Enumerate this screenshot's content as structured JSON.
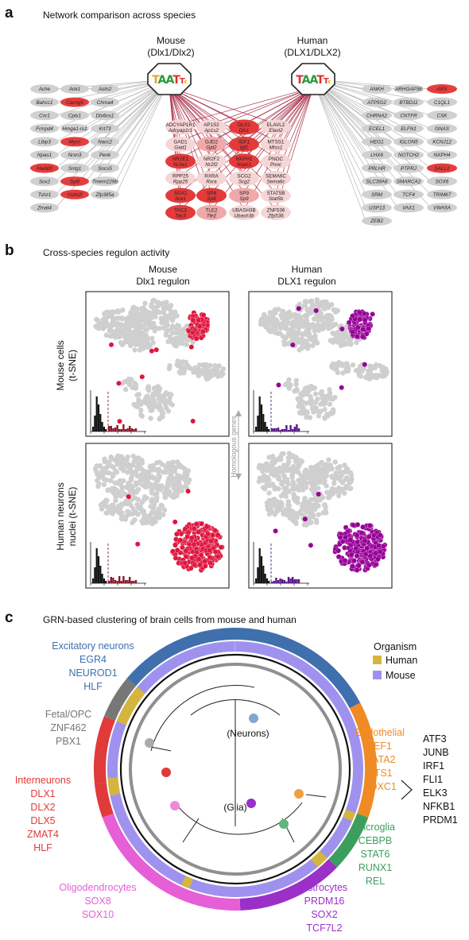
{
  "panel_a": {
    "letter": "a",
    "title": "Network comparison across species",
    "mouse_header": [
      "Mouse",
      "(Dlx1/Dlx2)"
    ],
    "human_header": [
      "Human",
      "(DLX1/DLX2)"
    ],
    "motif_text": "TAATT",
    "left_genes": [
      [
        "Ache",
        "Ank1",
        "Astn2"
      ],
      [
        "Bahcc1",
        "Cacng5",
        "Chrna4"
      ],
      [
        "Cnr1",
        "Cplx1",
        "Dlx6os1"
      ],
      [
        "Frmpd4",
        "Hmga1-rs1",
        "Krt73"
      ],
      [
        "Ltbp3",
        "Mycn",
        "Nacc2"
      ],
      [
        "Npas1",
        "Nrxn3",
        "Penk"
      ],
      [
        "Hwdd3",
        "Sntg1",
        "Socs5"
      ],
      [
        "Sox2",
        "Syt6",
        "Tmem229b"
      ],
      [
        "Tshz1",
        "Vstm2l",
        "Zfp385a"
      ],
      [
        "Zmat4"
      ]
    ],
    "left_red": [
      "Cacng5",
      "Mycn",
      "Hwdd3",
      "Syt6",
      "Vstm2l"
    ],
    "right_genes": [
      [
        "ANKH",
        "ARHGAP36",
        "ARX"
      ],
      [
        "ATP5G2",
        "BTBD11",
        "C1QL1"
      ],
      [
        "CHRNA2",
        "CNTFR",
        "CSK"
      ],
      [
        "ECEL1",
        "ELFN1",
        "GNAS"
      ],
      [
        "HEG1",
        "IGLON5",
        "KCNJ12"
      ],
      [
        "LHX6",
        "NOTCH2",
        "NXPH4"
      ],
      [
        "PRLHR",
        "PTPRJ",
        "SALL1"
      ],
      [
        "SLC39A6",
        "SMARCA2",
        "SOX6"
      ],
      [
        "SRM",
        "TCF4",
        "TRIM67"
      ],
      [
        "USP13",
        "VAX1",
        "VWA5A"
      ],
      [
        "ZEB2"
      ]
    ],
    "right_red": [
      "ARX",
      "SALL1"
    ],
    "shared_genes": [
      {
        "h": "ADCYAP1R1",
        "m": "Adcyap1r1",
        "c": "w"
      },
      {
        "h": "AP1S2",
        "m": "Ap1s2",
        "c": "w"
      },
      {
        "h": "DLX1",
        "m": "Dlx1",
        "c": "r"
      },
      {
        "h": "ELAVL2",
        "m": "Elavl2",
        "c": "w"
      },
      {
        "h": "GAD1",
        "m": "Gad1",
        "c": "w"
      },
      {
        "h": "GJD2",
        "m": "Gjd2",
        "c": "p"
      },
      {
        "h": "IGF1",
        "m": "Igf1",
        "c": "r"
      },
      {
        "h": "MTSS1",
        "m": "Mtss1",
        "c": "w"
      },
      {
        "h": "NR2E1",
        "m": "Nr2e1",
        "c": "r"
      },
      {
        "h": "NR2F2",
        "m": "Nr2f2",
        "c": "w"
      },
      {
        "h": "NXPH1",
        "m": "Nxph1",
        "c": "r"
      },
      {
        "h": "PNOC",
        "m": "Pnoc",
        "c": "w"
      },
      {
        "h": "RPP25",
        "m": "Rpp25",
        "c": "w"
      },
      {
        "h": "RXRA",
        "m": "Rxra",
        "c": "w"
      },
      {
        "h": "SCG2",
        "m": "Scg2",
        "c": "w"
      },
      {
        "h": "SEMA6C",
        "m": "Sema6c",
        "c": "w"
      },
      {
        "h": "SOX1",
        "m": "Sox1",
        "c": "r"
      },
      {
        "h": "SP8",
        "m": "Sp8",
        "c": "r"
      },
      {
        "h": "SP9",
        "m": "Sp9",
        "c": "p"
      },
      {
        "h": "STAT5B",
        "m": "Stat5b",
        "c": "w"
      },
      {
        "h": "TAC3",
        "m": "Tac3",
        "c": "r"
      },
      {
        "h": "TLE2",
        "m": "Tle2",
        "c": "p"
      },
      {
        "h": "UBASH3B",
        "m": "Ubash3b",
        "c": "w"
      },
      {
        "h": "ZNF536",
        "m": "Zfp536",
        "c": "w"
      }
    ]
  },
  "panel_b": {
    "letter": "b",
    "title": "Cross-species regulon activity",
    "col_headers": [
      [
        "Mouse",
        "Dlx1 regulon"
      ],
      [
        "Human",
        "DLX1 regulon"
      ]
    ],
    "row_headers": [
      [
        "Mouse cells",
        "(t-SNE)"
      ],
      [
        "Human neurons",
        "nuclei (t-SNE)"
      ]
    ],
    "middle_label": "Homologous genes",
    "colors": {
      "grey": "#cfcfcf",
      "mouse_regulon": "#e0163f",
      "human_regulon": "#960096"
    }
  },
  "panel_c": {
    "letter": "c",
    "title": "GRN-based clustering of brain cells from mouse and human",
    "legend": {
      "title": "Organism",
      "items": [
        {
          "label": "Human",
          "color": "#d4b53e"
        },
        {
          "label": "Mouse",
          "color": "#9f92ef"
        }
      ]
    },
    "center_labels": [
      "(Neurons)",
      "(Glia)"
    ],
    "groups": [
      {
        "name": "Excitatory neurons",
        "color": "#3f70ad",
        "tfs": [
          "EGR4",
          "NEUROD1",
          "HLF"
        ]
      },
      {
        "name": "Fetal/OPC",
        "color": "#777777",
        "tfs": [
          "ZNF462",
          "PBX1"
        ]
      },
      {
        "name": "Interneurons",
        "color": "#e03a3a",
        "tfs": [
          "DLX1",
          "DLX2",
          "DLX5",
          "ZMAT4",
          "HLF"
        ]
      },
      {
        "name": "Oligodendrocytes",
        "color": "#e65fd6",
        "tfs": [
          "SOX8",
          "SOX10"
        ]
      },
      {
        "name": "Astrocytes",
        "color": "#9b30c9",
        "tfs": [
          "PRDM16",
          "SOX2",
          "TCF7L2"
        ]
      },
      {
        "name": "Microglia",
        "color": "#3c9e5e",
        "tfs": [
          "CEBPB",
          "STAT6",
          "RUNX1",
          "REL"
        ]
      },
      {
        "name": "Endothelial",
        "color": "#f08a24",
        "tfs": [
          "LEF1",
          "GATA2",
          "ETS1",
          "FOXC1"
        ]
      }
    ],
    "shared_tfs": [
      "ATF3",
      "JUNB",
      "IRF1",
      "FLI1",
      "ELK3",
      "NFKB1",
      "PRDM1"
    ]
  }
}
